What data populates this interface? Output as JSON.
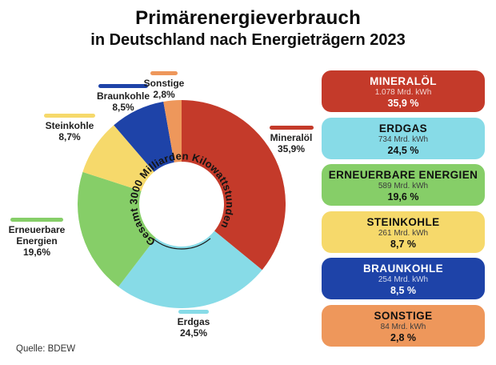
{
  "title": {
    "line1": "Primärenergieverbrauch",
    "line2": "in Deutschland nach Energieträgern 2023"
  },
  "source": "Quelle: BDEW",
  "chart_data": {
    "type": "pie",
    "subtype": "donut",
    "title": "Primärenergieverbrauch in Deutschland nach Energieträgern 2023",
    "center_label": "Gesamt 3000 Milliarden Kilowattstunden",
    "total_mrd_kwh": 3000,
    "unit": "Mrd. kWh",
    "start_angle_deg": 0,
    "direction": "clockwise",
    "legend_position": "right",
    "series": [
      {
        "name": "Mineralöl",
        "box_title": "MINERALÖL",
        "value_mrd_kwh": 1078,
        "amount_label": "1.078 Mrd. kWh",
        "percent": 35.9,
        "pie_percent_label": "35,9%",
        "box_percent_label": "35,9 %",
        "color": "#c43a2a",
        "text_style": "light"
      },
      {
        "name": "Erdgas",
        "box_title": "ERDGAS",
        "value_mrd_kwh": 734,
        "amount_label": "734 Mrd. kWh",
        "percent": 24.5,
        "pie_percent_label": "24,5%",
        "box_percent_label": "24,5 %",
        "color": "#87dbe7",
        "text_style": "dark"
      },
      {
        "name": "Erneuerbare Energien",
        "box_title": "ERNEUERBARE ENERGIEN",
        "value_mrd_kwh": 589,
        "amount_label": "589 Mrd. kWh",
        "percent": 19.6,
        "pie_percent_label": "19,6%",
        "box_percent_label": "19,6 %",
        "color": "#86ce68",
        "text_style": "dark"
      },
      {
        "name": "Steinkohle",
        "box_title": "STEINKOHLE",
        "value_mrd_kwh": 261,
        "amount_label": "261 Mrd. kWh",
        "percent": 8.7,
        "pie_percent_label": "8,7%",
        "box_percent_label": "8,7 %",
        "color": "#f6d96b",
        "text_style": "dark"
      },
      {
        "name": "Braunkohle",
        "box_title": "BRAUNKOHLE",
        "value_mrd_kwh": 254,
        "amount_label": "254 Mrd. kWh",
        "percent": 8.5,
        "pie_percent_label": "8,5%",
        "box_percent_label": "8,5 %",
        "color": "#1e43a8",
        "text_style": "light"
      },
      {
        "name": "Sonstige",
        "box_title": "SONSTIGE",
        "value_mrd_kwh": 84,
        "amount_label": "84 Mrd. kWh",
        "percent": 2.8,
        "pie_percent_label": "2,8%",
        "box_percent_label": "2,8 %",
        "color": "#ee975b",
        "text_style": "dark"
      }
    ]
  }
}
